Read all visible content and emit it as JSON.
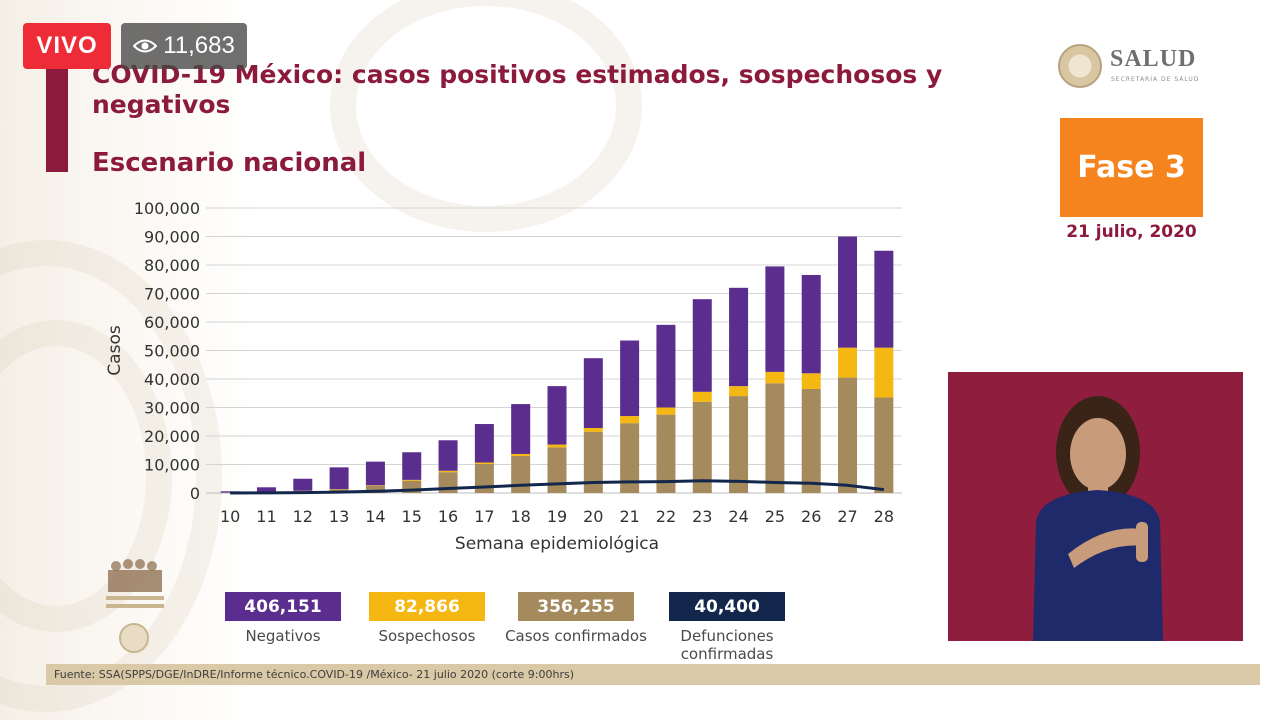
{
  "live_badge": "VIVO",
  "viewer_count": "11,683",
  "title": "COVID-19 México: casos positivos estimados, sospechosos y negativos",
  "subtitle": "Escenario nacional",
  "logo_text": "SALUD",
  "logo_subtext": "SECRETARÍA DE SALUD",
  "phase_label": "Fase 3",
  "date": "21 julio, 2020",
  "footer": "Fuente: SSA(SPPS/DGE/InDRE/Informe técnico.COVID-19 /México- 21 julio 2020 (corte 9:00hrs)",
  "colors": {
    "negativos": "#5b2d8e",
    "sospechosos": "#f5b812",
    "confirmados": "#a48a5c",
    "defunciones": "#13274d",
    "accent": "#8c1a3c",
    "phase": "#f5841f"
  },
  "legend": [
    {
      "value": "406,151",
      "label": "Negativos",
      "color": "#5b2d8e"
    },
    {
      "value": "82,866",
      "label": "Sospechosos",
      "color": "#f5b812"
    },
    {
      "value": "356,255",
      "label": "Casos confirmados",
      "color": "#a48a5c"
    },
    {
      "value": "40,400",
      "label": "Defunciones confirmadas",
      "color": "#13274d"
    }
  ],
  "chart_data": {
    "type": "bar",
    "stacked": true,
    "xlabel": "Semana epidemiológica",
    "ylabel": "Casos",
    "ylim": [
      0,
      100000
    ],
    "yticks": [
      "0",
      "10,000",
      "20,000",
      "30,000",
      "40,000",
      "50,000",
      "60,000",
      "70,000",
      "80,000",
      "90,000",
      "100,000"
    ],
    "categories": [
      "10",
      "11",
      "12",
      "13",
      "14",
      "15",
      "16",
      "17",
      "18",
      "19",
      "20",
      "21",
      "22",
      "23",
      "24",
      "25",
      "26",
      "27",
      "28"
    ],
    "grid": true,
    "series": [
      {
        "name": "Casos confirmados",
        "kind": "bar",
        "values": [
          200,
          400,
          700,
          1300,
          2500,
          4300,
          7300,
          10200,
          13000,
          16000,
          21500,
          24500,
          27500,
          32000,
          34000,
          38500,
          36500,
          40500,
          33500
        ]
      },
      {
        "name": "Sospechosos",
        "kind": "bar",
        "values": [
          0,
          0,
          100,
          100,
          200,
          300,
          500,
          500,
          700,
          1000,
          1300,
          2500,
          2500,
          3500,
          3500,
          4000,
          5500,
          10500,
          17500
        ]
      },
      {
        "name": "Negativos",
        "kind": "bar",
        "values": [
          400,
          1600,
          4200,
          7600,
          8300,
          9700,
          10700,
          13500,
          17500,
          20500,
          24500,
          26500,
          29000,
          32500,
          34500,
          37000,
          34500,
          39000,
          34000
        ]
      },
      {
        "name": "Defunciones confirmadas",
        "kind": "line",
        "values": [
          20,
          50,
          150,
          300,
          600,
          1000,
          1600,
          2100,
          2700,
          3200,
          3700,
          3900,
          4000,
          4300,
          4100,
          3700,
          3400,
          2700,
          1200
        ]
      }
    ]
  }
}
